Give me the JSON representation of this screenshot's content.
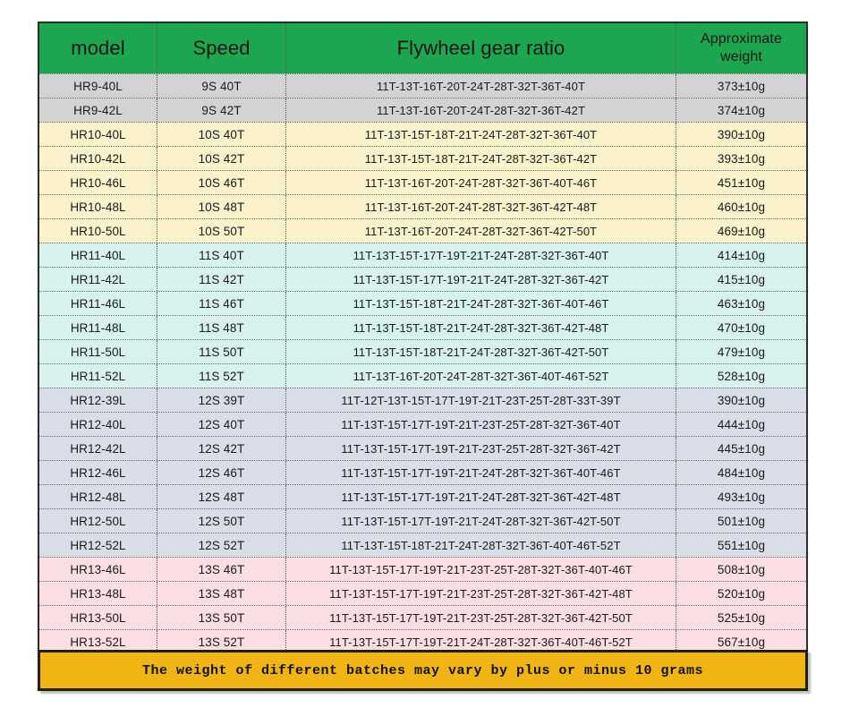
{
  "table": {
    "columns": [
      {
        "key": "model",
        "label": "model"
      },
      {
        "key": "speed",
        "label": "Speed"
      },
      {
        "key": "ratio",
        "label": "Flywheel gear ratio"
      },
      {
        "key": "weight",
        "label": "Approximate weight"
      }
    ],
    "rows": [
      {
        "group": "hr9",
        "model": "HR9-40L",
        "speed": "9S 40T",
        "ratio": "11T-13T-16T-20T-24T-28T-32T-36T-40T",
        "weight": "373±10g"
      },
      {
        "group": "hr9",
        "model": "HR9-42L",
        "speed": "9S 42T",
        "ratio": "11T-13T-16T-20T-24T-28T-32T-36T-42T",
        "weight": "374±10g"
      },
      {
        "group": "hr10",
        "model": "HR10-40L",
        "speed": "10S 40T",
        "ratio": "11T-13T-15T-18T-21T-24T-28T-32T-36T-40T",
        "weight": "390±10g"
      },
      {
        "group": "hr10",
        "model": "HR10-42L",
        "speed": "10S 42T",
        "ratio": "11T-13T-15T-18T-21T-24T-28T-32T-36T-42T",
        "weight": "393±10g"
      },
      {
        "group": "hr10",
        "model": "HR10-46L",
        "speed": "10S 46T",
        "ratio": "11T-13T-16T-20T-24T-28T-32T-36T-40T-46T",
        "weight": "451±10g"
      },
      {
        "group": "hr10",
        "model": "HR10-48L",
        "speed": "10S 48T",
        "ratio": "11T-13T-16T-20T-24T-28T-32T-36T-42T-48T",
        "weight": "460±10g"
      },
      {
        "group": "hr10",
        "model": "HR10-50L",
        "speed": "10S 50T",
        "ratio": "11T-13T-16T-20T-24T-28T-32T-36T-42T-50T",
        "weight": "469±10g"
      },
      {
        "group": "hr11",
        "model": "HR11-40L",
        "speed": "11S 40T",
        "ratio": "11T-13T-15T-17T-19T-21T-24T-28T-32T-36T-40T",
        "weight": "414±10g"
      },
      {
        "group": "hr11",
        "model": "HR11-42L",
        "speed": "11S 42T",
        "ratio": "11T-13T-15T-17T-19T-21T-24T-28T-32T-36T-42T",
        "weight": "415±10g"
      },
      {
        "group": "hr11",
        "model": "HR11-46L",
        "speed": "11S 46T",
        "ratio": "11T-13T-15T-18T-21T-24T-28T-32T-36T-40T-46T",
        "weight": "463±10g"
      },
      {
        "group": "hr11",
        "model": "HR11-48L",
        "speed": "11S 48T",
        "ratio": "11T-13T-15T-18T-21T-24T-28T-32T-36T-42T-48T",
        "weight": "470±10g"
      },
      {
        "group": "hr11",
        "model": "HR11-50L",
        "speed": "11S 50T",
        "ratio": "11T-13T-15T-18T-21T-24T-28T-32T-36T-42T-50T",
        "weight": "479±10g"
      },
      {
        "group": "hr11",
        "model": "HR11-52L",
        "speed": "11S 52T",
        "ratio": "11T-13T-16T-20T-24T-28T-32T-36T-40T-46T-52T",
        "weight": "528±10g"
      },
      {
        "group": "hr12",
        "model": "HR12-39L",
        "speed": "12S 39T",
        "ratio": "11T-12T-13T-15T-17T-19T-21T-23T-25T-28T-33T-39T",
        "weight": "390±10g"
      },
      {
        "group": "hr12",
        "model": "HR12-40L",
        "speed": "12S 40T",
        "ratio": "11T-13T-15T-17T-19T-21T-23T-25T-28T-32T-36T-40T",
        "weight": "444±10g"
      },
      {
        "group": "hr12",
        "model": "HR12-42L",
        "speed": "12S 42T",
        "ratio": "11T-13T-15T-17T-19T-21T-23T-25T-28T-32T-36T-42T",
        "weight": "445±10g"
      },
      {
        "group": "hr12",
        "model": "HR12-46L",
        "speed": "12S 46T",
        "ratio": "11T-13T-15T-17T-19T-21T-24T-28T-32T-36T-40T-46T",
        "weight": "484±10g"
      },
      {
        "group": "hr12",
        "model": "HR12-48L",
        "speed": "12S 48T",
        "ratio": "11T-13T-15T-17T-19T-21T-24T-28T-32T-36T-42T-48T",
        "weight": "493±10g"
      },
      {
        "group": "hr12",
        "model": "HR12-50L",
        "speed": "12S 50T",
        "ratio": "11T-13T-15T-17T-19T-21T-24T-28T-32T-36T-42T-50T",
        "weight": "501±10g"
      },
      {
        "group": "hr12",
        "model": "HR12-52L",
        "speed": "12S 52T",
        "ratio": "11T-13T-15T-18T-21T-24T-28T-32T-36T-40T-46T-52T",
        "weight": "551±10g"
      },
      {
        "group": "hr13",
        "model": "HR13-46L",
        "speed": "13S 46T",
        "ratio": "11T-13T-15T-17T-19T-21T-23T-25T-28T-32T-36T-40T-46T",
        "weight": "508±10g"
      },
      {
        "group": "hr13",
        "model": "HR13-48L",
        "speed": "13S 48T",
        "ratio": "11T-13T-15T-17T-19T-21T-23T-25T-28T-32T-36T-42T-48T",
        "weight": "520±10g"
      },
      {
        "group": "hr13",
        "model": "HR13-50L",
        "speed": "13S 50T",
        "ratio": "11T-13T-15T-17T-19T-21T-23T-25T-28T-32T-36T-42T-50T",
        "weight": "525±10g"
      },
      {
        "group": "hr13",
        "model": "HR13-52L",
        "speed": "13S 52T",
        "ratio": "11T-13T-15T-17T-19T-21T-24T-28T-32T-36T-40T-46T-52T",
        "weight": "567±10g"
      }
    ],
    "footer_note": "The weight of different batches may vary by plus or minus 10 grams"
  },
  "colors": {
    "header_green": "#1CA64F",
    "footer_gold": "#F0B513",
    "groups": {
      "hr9": "#D3D3D3",
      "hr10": "#FBF1CA",
      "hr11": "#D7F2EE",
      "hr12": "#D9DDE8",
      "hr13": "#FBDEE1"
    }
  }
}
